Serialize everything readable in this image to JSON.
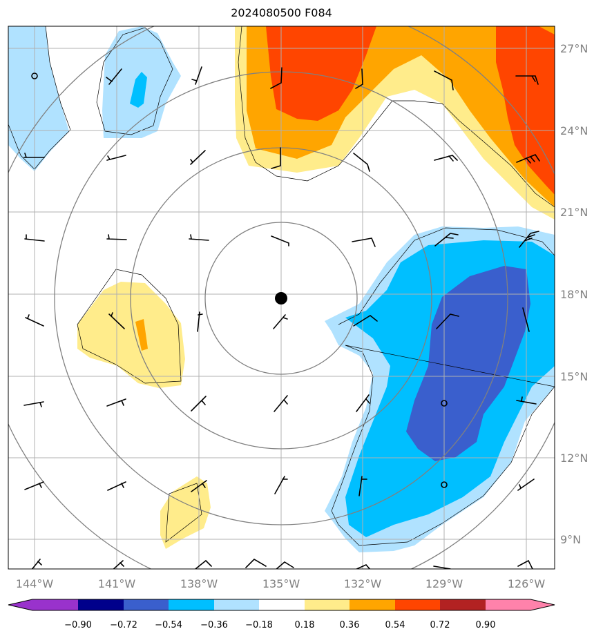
{
  "title": "2024080500 F084",
  "map": {
    "lon_labels": [
      "144°W",
      "141°W",
      "138°W",
      "135°W",
      "132°W",
      "129°W",
      "126°W"
    ],
    "lat_labels": [
      "27°N",
      "24°N",
      "21°N",
      "18°N",
      "15°N",
      "12°N",
      "9°N"
    ],
    "center_marker": "storm-center-dot",
    "range_ring_count": 4,
    "grid": true,
    "wind_barbs": true
  },
  "colorbar": {
    "labels": [
      "−0.90",
      "−0.72",
      "−0.54",
      "−0.36",
      "−0.18",
      "0.18",
      "0.36",
      "0.54",
      "0.72",
      "0.90"
    ],
    "colors": [
      "#9932cc",
      "#00008b",
      "#3a5fcd",
      "#00bfff",
      "#b0e2ff",
      "#ffffff",
      "#ffec8b",
      "#ffa500",
      "#ff4500",
      "#b22222",
      "#ff82ab"
    ],
    "extend": "both"
  }
}
